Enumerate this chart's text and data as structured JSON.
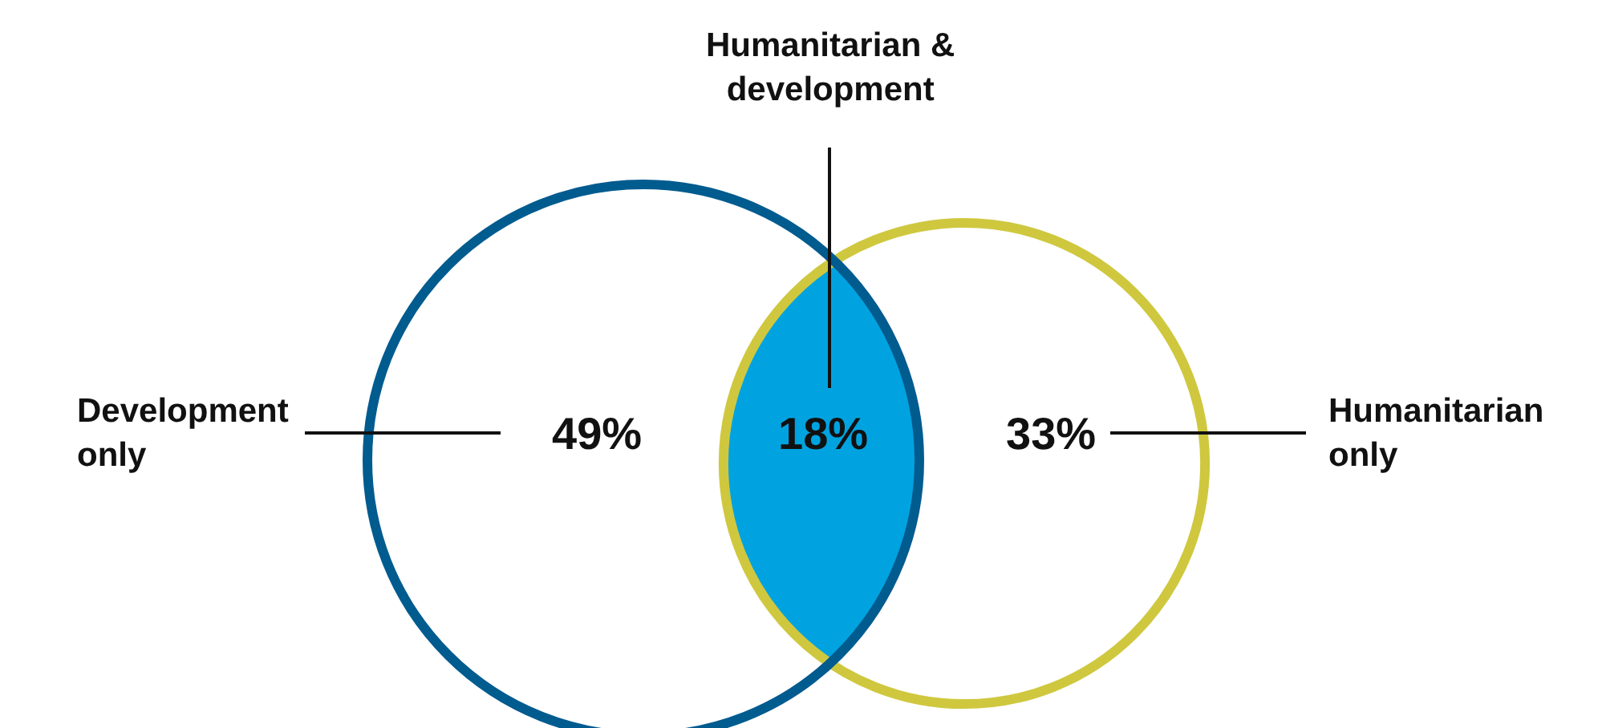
{
  "chart_data": {
    "type": "other",
    "categories": [
      "Development only",
      "Humanitarian & development",
      "Humanitarian only"
    ],
    "values": [
      49,
      18,
      33
    ],
    "value_labels": [
      "49%",
      "18%",
      "33%"
    ],
    "colors": [
      "#005b8f",
      "#00a3e0",
      "#cfc83f"
    ]
  }
}
